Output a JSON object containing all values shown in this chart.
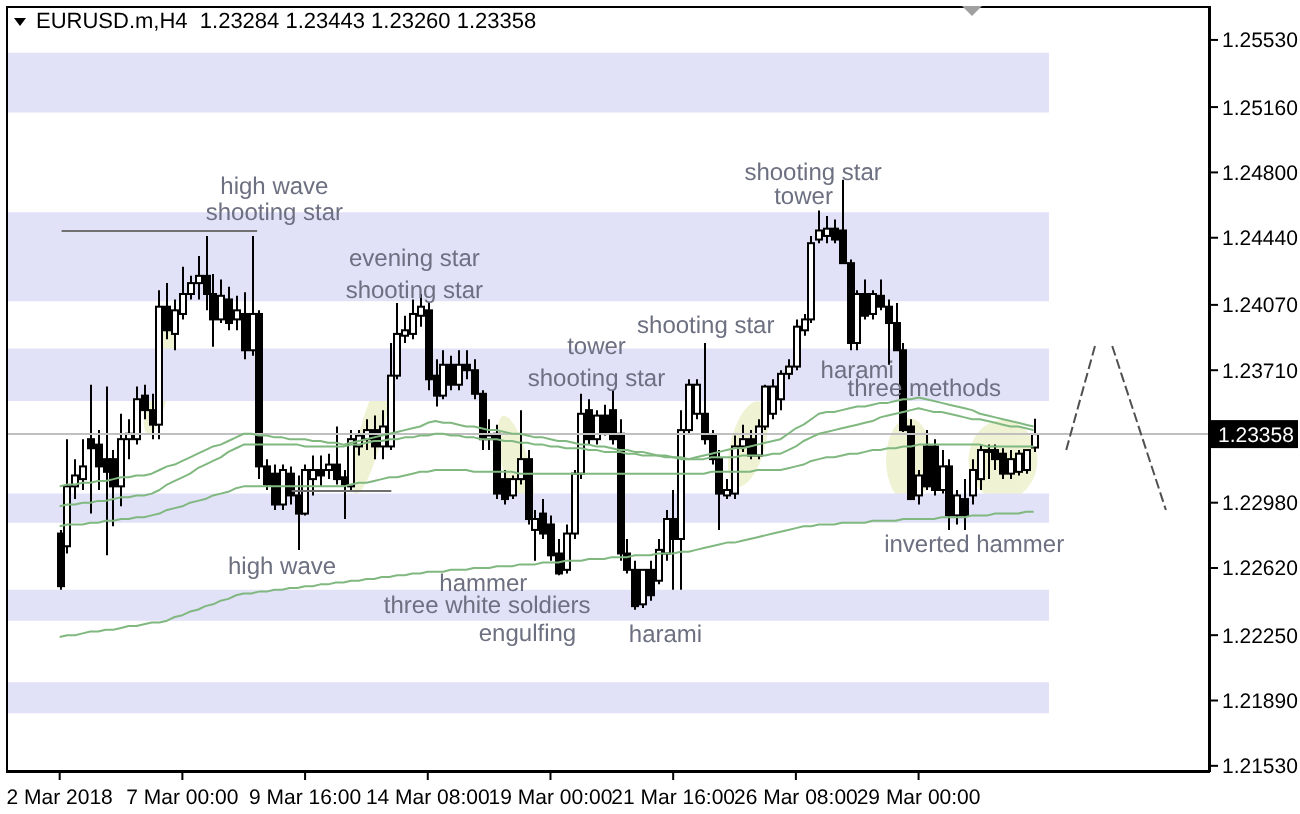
{
  "chart_data": {
    "type": "candlestick",
    "title": "EURUSD.m,H4  1.23284 1.23443 1.23260 1.23358",
    "categories": [
      "2 Mar 2018",
      null,
      null,
      null,
      null,
      null,
      null,
      null,
      null,
      null,
      null,
      null,
      null,
      null,
      null,
      null,
      "7 Mar 00:00",
      null,
      null,
      null,
      null,
      null,
      null,
      null,
      null,
      null,
      null,
      null,
      null,
      null,
      null,
      null,
      "9 Mar 16:00",
      null,
      null,
      null,
      null,
      null,
      null,
      null,
      null,
      null,
      null,
      null,
      null,
      null,
      null,
      null,
      "14 Mar 08:00",
      null,
      null,
      null,
      null,
      null,
      null,
      null,
      null,
      null,
      null,
      null,
      null,
      null,
      null,
      null,
      "19 Mar 00:00",
      null,
      null,
      null,
      null,
      null,
      null,
      null,
      null,
      null,
      null,
      null,
      null,
      null,
      null,
      null,
      "21 Mar 16:00",
      null,
      null,
      null,
      null,
      null,
      null,
      null,
      null,
      null,
      null,
      null,
      null,
      null,
      null,
      null,
      "26 Mar 08:00",
      null,
      null,
      null,
      null,
      null,
      null,
      null,
      null,
      null,
      null,
      null,
      null,
      null,
      null,
      null,
      "29 Mar 00:00",
      null,
      null,
      null,
      null,
      null,
      null,
      null,
      null,
      null,
      null,
      null,
      null,
      null,
      null,
      null
    ],
    "series": [
      {
        "type": "line",
        "color": "#80b880",
        "values": [
          1.2307,
          1.2308,
          1.2308,
          1.2309,
          1.2309,
          1.231,
          1.231,
          1.2311,
          1.2312,
          1.2312,
          1.2313,
          1.2313,
          1.2314,
          1.2316,
          1.2318,
          1.2319,
          1.2321,
          1.2323,
          1.2325,
          1.2327,
          1.2329,
          1.233,
          1.2332,
          1.2334,
          1.2336,
          1.2336,
          1.2335,
          1.2335,
          1.2334,
          1.2334,
          1.2333,
          1.2333,
          1.2333,
          1.2332,
          1.2332,
          1.2331,
          1.2331,
          1.233,
          1.2331,
          1.2332,
          1.2333,
          1.2334,
          1.2335,
          1.2336,
          1.2337,
          1.2338,
          1.2339,
          1.234,
          1.2342,
          1.2343,
          1.2342,
          1.2342,
          1.2341,
          1.234,
          1.234,
          1.2339,
          1.2338,
          1.2338,
          1.2337,
          1.2336,
          1.2336,
          1.2335,
          1.2334,
          1.2334,
          1.2333,
          1.2332,
          1.2332,
          1.2331,
          1.233,
          1.233,
          1.2329,
          1.2329,
          1.2328,
          1.2327,
          1.2327,
          1.2326,
          1.2326,
          1.2325,
          1.2324,
          1.2324,
          1.2323,
          1.2323,
          1.2322,
          1.2323,
          1.2324,
          1.2325,
          1.2326,
          1.2327,
          1.2328,
          1.2328,
          1.2329,
          1.233,
          1.2331,
          1.2332,
          1.2333,
          1.2336,
          1.2339,
          1.2341,
          1.2344,
          1.2347,
          1.2348,
          1.2348,
          1.2349,
          1.235,
          1.2351,
          1.2351,
          1.2352,
          1.2353,
          1.2353,
          1.2354,
          1.2355,
          1.2355,
          1.2356,
          1.2355,
          1.2354,
          1.2353,
          1.2352,
          1.2351,
          1.235,
          1.2349,
          1.2347,
          1.2346,
          1.2345,
          1.2344,
          1.2343,
          1.2342,
          1.2341,
          1.234
        ]
      },
      {
        "type": "line",
        "color": "#80b880",
        "values": [
          1.2296,
          1.2297,
          1.2297,
          1.2298,
          1.2298,
          1.2299,
          1.2299,
          1.23,
          1.2301,
          1.2301,
          1.2302,
          1.2302,
          1.2303,
          1.2305,
          1.2308,
          1.231,
          1.2312,
          1.2314,
          1.2317,
          1.2319,
          1.2321,
          1.2323,
          1.2326,
          1.2328,
          1.233,
          1.233,
          1.233,
          1.233,
          1.233,
          1.233,
          1.233,
          1.233,
          1.2329,
          1.2329,
          1.2329,
          1.2329,
          1.2329,
          1.2329,
          1.233,
          1.233,
          1.2331,
          1.2332,
          1.2332,
          1.2333,
          1.2333,
          1.2334,
          1.2334,
          1.2335,
          1.2335,
          1.2336,
          1.2336,
          1.2335,
          1.2335,
          1.2334,
          1.2334,
          1.2333,
          1.2333,
          1.2333,
          1.2332,
          1.2332,
          1.2331,
          1.2331,
          1.233,
          1.233,
          1.2329,
          1.2329,
          1.2328,
          1.2328,
          1.2328,
          1.2327,
          1.2327,
          1.2326,
          1.2326,
          1.2326,
          1.2325,
          1.2325,
          1.2324,
          1.2324,
          1.2324,
          1.2323,
          1.2323,
          1.2322,
          1.2322,
          1.2322,
          1.2322,
          1.2323,
          1.2323,
          1.2323,
          1.2323,
          1.2324,
          1.2324,
          1.2324,
          1.2324,
          1.2325,
          1.2325,
          1.2327,
          1.2329,
          1.2332,
          1.2334,
          1.2336,
          1.2337,
          1.2338,
          1.2339,
          1.234,
          1.2341,
          1.2342,
          1.2343,
          1.2345,
          1.2346,
          1.2347,
          1.2348,
          1.2349,
          1.235,
          1.2349,
          1.2348,
          1.2348,
          1.2347,
          1.2346,
          1.2345,
          1.2344,
          1.2344,
          1.2343,
          1.2342,
          1.2341,
          1.234,
          1.234,
          1.2339,
          1.2338
        ]
      },
      {
        "type": "line",
        "color": "#80b880",
        "values": [
          1.2285,
          1.2286,
          1.2286,
          1.2286,
          1.2287,
          1.2287,
          1.2288,
          1.2288,
          1.2289,
          1.2289,
          1.229,
          1.229,
          1.2291,
          1.2292,
          1.2294,
          1.2295,
          1.2296,
          1.2298,
          1.2299,
          1.23,
          1.2302,
          1.2303,
          1.2304,
          1.2306,
          1.2307,
          1.2307,
          1.2307,
          1.2307,
          1.2307,
          1.2307,
          1.2307,
          1.2307,
          1.2307,
          1.2307,
          1.2307,
          1.2307,
          1.2307,
          1.2307,
          1.2308,
          1.2309,
          1.2309,
          1.231,
          1.2311,
          1.2312,
          1.2312,
          1.2313,
          1.2314,
          1.2315,
          1.2315,
          1.2316,
          1.2316,
          1.2316,
          1.2316,
          1.2316,
          1.2315,
          1.2315,
          1.2315,
          1.2315,
          1.2315,
          1.2315,
          1.2314,
          1.2314,
          1.2314,
          1.2314,
          1.2314,
          1.2314,
          1.2314,
          1.2314,
          1.2314,
          1.2314,
          1.2314,
          1.2314,
          1.2314,
          1.2314,
          1.2314,
          1.2314,
          1.2314,
          1.2314,
          1.2314,
          1.2314,
          1.2314,
          1.2314,
          1.2314,
          1.2314,
          1.2314,
          1.2315,
          1.2315,
          1.2315,
          1.2315,
          1.2315,
          1.2315,
          1.2316,
          1.2316,
          1.2316,
          1.2316,
          1.2317,
          1.2318,
          1.2319,
          1.2321,
          1.2322,
          1.2323,
          1.2323,
          1.2324,
          1.2325,
          1.2325,
          1.2326,
          1.2327,
          1.2327,
          1.2328,
          1.2328,
          1.2329,
          1.2329,
          1.233,
          1.233,
          1.233,
          1.233,
          1.233,
          1.233,
          1.233,
          1.233,
          1.233,
          1.2329,
          1.2329,
          1.2329,
          1.2329,
          1.2329,
          1.2329,
          1.2329
        ]
      },
      {
        "type": "line",
        "color": "#80b880",
        "values": [
          1.2224,
          1.2225,
          1.2225,
          1.2226,
          1.2227,
          1.2227,
          1.2228,
          1.2228,
          1.2229,
          1.223,
          1.223,
          1.2231,
          1.2232,
          1.2232,
          1.2233,
          1.2235,
          1.2236,
          1.2238,
          1.2239,
          1.2241,
          1.2242,
          1.2244,
          1.2245,
          1.2247,
          1.2248,
          1.2248,
          1.2249,
          1.2249,
          1.225,
          1.225,
          1.2251,
          1.2251,
          1.2252,
          1.2252,
          1.2253,
          1.2253,
          1.2254,
          1.2254,
          1.2255,
          1.2255,
          1.2256,
          1.2256,
          1.2257,
          1.2257,
          1.2258,
          1.2258,
          1.2259,
          1.2259,
          1.226,
          1.226,
          1.226,
          1.2261,
          1.2261,
          1.2261,
          1.2262,
          1.2262,
          1.2262,
          1.2263,
          1.2263,
          1.2263,
          1.2264,
          1.2264,
          1.2264,
          1.2265,
          1.2265,
          1.2265,
          1.2266,
          1.2266,
          1.2266,
          1.2267,
          1.2267,
          1.2267,
          1.2268,
          1.2268,
          1.2268,
          1.2269,
          1.2269,
          1.2269,
          1.227,
          1.227,
          1.227,
          1.2271,
          1.2271,
          1.2272,
          1.2273,
          1.2274,
          1.2275,
          1.2276,
          1.2276,
          1.2277,
          1.2278,
          1.2279,
          1.228,
          1.2281,
          1.2282,
          1.2283,
          1.2284,
          1.2285,
          1.2285,
          1.2286,
          1.2286,
          1.2286,
          1.2287,
          1.2287,
          1.2287,
          1.2287,
          1.2288,
          1.2288,
          1.2288,
          1.2288,
          1.2289,
          1.2289,
          1.2289,
          1.2289,
          1.2289,
          1.229,
          1.229,
          1.229,
          1.229,
          1.2291,
          1.2291,
          1.2291,
          1.2292,
          1.2292,
          1.2292,
          1.2292,
          1.2293,
          1.2293
        ]
      },
      {
        "type": "candlestick",
        "color": "#000000",
        "ohlc": [
          [
            1.2281,
            1.2283,
            1.225,
            1.2252
          ],
          [
            1.2274,
            1.2333,
            1.227,
            1.2307
          ],
          [
            1.2307,
            1.2322,
            1.23,
            1.2313
          ],
          [
            1.2311,
            1.2333,
            1.2305,
            1.2318
          ],
          [
            1.2333,
            1.2363,
            1.2292,
            1.2328
          ],
          [
            1.233,
            1.2338,
            1.2305,
            1.2318
          ],
          [
            1.2322,
            1.2362,
            1.2269,
            1.2315
          ],
          [
            1.2322,
            1.2327,
            1.2285,
            1.2307
          ],
          [
            1.2307,
            1.2347,
            1.2296,
            1.2333
          ],
          [
            1.2333,
            1.2344,
            1.2322,
            1.2336
          ],
          [
            1.2333,
            1.2362,
            1.233,
            1.2355
          ],
          [
            1.2357,
            1.2363,
            1.2344,
            1.2349
          ],
          [
            1.2349,
            1.2358,
            1.2333,
            1.2341
          ],
          [
            1.2341,
            1.2415,
            1.2333,
            1.2406
          ],
          [
            1.2406,
            1.2419,
            1.2388,
            1.2393
          ],
          [
            1.2391,
            1.241,
            1.2382,
            1.2404
          ],
          [
            1.2402,
            1.2428,
            1.2399,
            1.2413
          ],
          [
            1.2413,
            1.2423,
            1.241,
            1.2419
          ],
          [
            1.2419,
            1.2434,
            1.241,
            1.2423
          ],
          [
            1.2423,
            1.2445,
            1.2404,
            1.2413
          ],
          [
            1.2413,
            1.2424,
            1.2384,
            1.2399
          ],
          [
            1.2399,
            1.2421,
            1.2397,
            1.2412
          ],
          [
            1.241,
            1.2417,
            1.2393,
            1.2397
          ],
          [
            1.2399,
            1.2412,
            1.2393,
            1.2404
          ],
          [
            1.2402,
            1.2414,
            1.2377,
            1.2382
          ],
          [
            1.2382,
            1.2445,
            1.2379,
            1.2402
          ],
          [
            1.2402,
            1.2404,
            1.2311,
            1.2318
          ],
          [
            1.2318,
            1.2322,
            1.2305,
            1.2308
          ],
          [
            1.2314,
            1.2319,
            1.2294,
            1.2297
          ],
          [
            1.2297,
            1.2319,
            1.2294,
            1.2316
          ],
          [
            1.2314,
            1.2318,
            1.2297,
            1.2302
          ],
          [
            1.2302,
            1.2313,
            1.2272,
            1.2292
          ],
          [
            1.2292,
            1.2319,
            1.2291,
            1.2316
          ],
          [
            1.2311,
            1.2324,
            1.2302,
            1.2316
          ],
          [
            1.2316,
            1.2324,
            1.2307,
            1.2313
          ],
          [
            1.2316,
            1.2325,
            1.2311,
            1.2319
          ],
          [
            1.2319,
            1.234,
            1.2308,
            1.2311
          ],
          [
            1.2312,
            1.2316,
            1.2289,
            1.2308
          ],
          [
            1.2307,
            1.2338,
            1.2305,
            1.2333
          ],
          [
            1.2329,
            1.2338,
            1.2324,
            1.2335
          ],
          [
            1.2333,
            1.2344,
            1.2327,
            1.2338
          ],
          [
            1.2338,
            1.2346,
            1.2322,
            1.2329
          ],
          [
            1.2329,
            1.2349,
            1.2322,
            1.234
          ],
          [
            1.2329,
            1.2386,
            1.2327,
            1.2368
          ],
          [
            1.2368,
            1.2408,
            1.2366,
            1.2391
          ],
          [
            1.239,
            1.2401,
            1.2386,
            1.2393
          ],
          [
            1.2391,
            1.241,
            1.2388,
            1.2402
          ],
          [
            1.2401,
            1.2413,
            1.2395,
            1.2406
          ],
          [
            1.2404,
            1.2408,
            1.236,
            1.2366
          ],
          [
            1.2368,
            1.2377,
            1.2351,
            1.2357
          ],
          [
            1.2357,
            1.2382,
            1.2355,
            1.2374
          ],
          [
            1.2374,
            1.2379,
            1.236,
            1.2363
          ],
          [
            1.2363,
            1.2382,
            1.236,
            1.2374
          ],
          [
            1.2374,
            1.2382,
            1.2366,
            1.2371
          ],
          [
            1.2371,
            1.2377,
            1.2355,
            1.2358
          ],
          [
            1.2358,
            1.236,
            1.2327,
            1.2333
          ],
          [
            1.2333,
            1.2344,
            1.2327,
            1.2335
          ],
          [
            1.2336,
            1.2341,
            1.23,
            1.2303
          ],
          [
            1.2311,
            1.2316,
            1.2297,
            1.23
          ],
          [
            1.2302,
            1.2313,
            1.23,
            1.2311
          ],
          [
            1.2311,
            1.2349,
            1.2308,
            1.2322
          ],
          [
            1.2322,
            1.2327,
            1.2286,
            1.2289
          ],
          [
            1.2283,
            1.2294,
            1.2266,
            1.2289
          ],
          [
            1.2292,
            1.23,
            1.2278,
            1.2281
          ],
          [
            1.2286,
            1.2291,
            1.2266,
            1.2269
          ],
          [
            1.227,
            1.2278,
            1.2258,
            1.2259
          ],
          [
            1.2261,
            1.2286,
            1.2259,
            1.2281
          ],
          [
            1.2281,
            1.2316,
            1.2278,
            1.2314
          ],
          [
            1.2314,
            1.2358,
            1.2311,
            1.2347
          ],
          [
            1.2349,
            1.2355,
            1.233,
            1.2333
          ],
          [
            1.2333,
            1.2349,
            1.233,
            1.2346
          ],
          [
            1.2346,
            1.2352,
            1.2335,
            1.2336
          ],
          [
            1.2349,
            1.236,
            1.233,
            1.2333
          ],
          [
            1.2336,
            1.2344,
            1.2266,
            1.227
          ],
          [
            1.227,
            1.2278,
            1.2259,
            1.2261
          ],
          [
            1.2261,
            1.2266,
            1.2239,
            1.2241
          ],
          [
            1.2242,
            1.2261,
            1.224,
            1.2261
          ],
          [
            1.2261,
            1.2266,
            1.2244,
            1.2247
          ],
          [
            1.2255,
            1.2278,
            1.2253,
            1.2272
          ],
          [
            1.227,
            1.2294,
            1.2266,
            1.2289
          ],
          [
            1.2289,
            1.2305,
            1.225,
            1.2278
          ],
          [
            1.2278,
            1.2349,
            1.225,
            1.2338
          ],
          [
            1.2338,
            1.2366,
            1.2336,
            1.2363
          ],
          [
            1.2347,
            1.2366,
            1.2344,
            1.2363
          ],
          [
            1.2347,
            1.2386,
            1.233,
            1.2333
          ],
          [
            1.2335,
            1.2338,
            1.2319,
            1.2322
          ],
          [
            1.2322,
            1.2327,
            1.2283,
            1.2303
          ],
          [
            1.2302,
            1.2311,
            1.23,
            1.2305
          ],
          [
            1.2303,
            1.2335,
            1.23,
            1.2329
          ],
          [
            1.2329,
            1.2341,
            1.2326,
            1.2333
          ],
          [
            1.2333,
            1.2338,
            1.2322,
            1.2324
          ],
          [
            1.2324,
            1.2344,
            1.2322,
            1.234
          ],
          [
            1.234,
            1.2363,
            1.2338,
            1.2362
          ],
          [
            1.2347,
            1.2366,
            1.2344,
            1.2362
          ],
          [
            1.2355,
            1.2371,
            1.2349,
            1.2369
          ],
          [
            1.2369,
            1.2377,
            1.2366,
            1.2373
          ],
          [
            1.2373,
            1.2399,
            1.2371,
            1.2395
          ],
          [
            1.2393,
            1.2402,
            1.239,
            1.2399
          ],
          [
            1.2399,
            1.2445,
            1.2397,
            1.2441
          ],
          [
            1.2443,
            1.2459,
            1.2441,
            1.2448
          ],
          [
            1.2445,
            1.2456,
            1.2441,
            1.2449
          ],
          [
            1.2449,
            1.2454,
            1.2441,
            1.2443
          ],
          [
            1.2448,
            1.2476,
            1.243,
            1.243
          ],
          [
            1.243,
            1.2432,
            1.2382,
            1.2386
          ],
          [
            1.2386,
            1.2415,
            1.2382,
            1.2413
          ],
          [
            1.2413,
            1.2421,
            1.2399,
            1.2401
          ],
          [
            1.2402,
            1.2415,
            1.2399,
            1.2413
          ],
          [
            1.2412,
            1.2421,
            1.2404,
            1.2406
          ],
          [
            1.2406,
            1.241,
            1.2374,
            1.2397
          ],
          [
            1.2397,
            1.2408,
            1.2382,
            1.2382
          ],
          [
            1.2382,
            1.2386,
            1.2337,
            1.2338
          ],
          [
            1.234,
            1.2344,
            1.23,
            1.23
          ],
          [
            1.2302,
            1.2316,
            1.2297,
            1.2313
          ],
          [
            1.2329,
            1.2338,
            1.2305,
            1.2307
          ],
          [
            1.2329,
            1.2333,
            1.2302,
            1.2305
          ],
          [
            1.2305,
            1.2327,
            1.2303,
            1.2318
          ],
          [
            1.2318,
            1.2322,
            1.2283,
            1.2291
          ],
          [
            1.2291,
            1.2305,
            1.2286,
            1.2302
          ],
          [
            1.23,
            1.2311,
            1.2283,
            1.2291
          ],
          [
            1.2302,
            1.2322,
            1.2297,
            1.2316
          ],
          [
            1.2311,
            1.233,
            1.2305,
            1.2327
          ],
          [
            1.2326,
            1.233,
            1.2311,
            1.2327
          ],
          [
            1.2327,
            1.233,
            1.2316,
            1.2322
          ],
          [
            1.2325,
            1.2328,
            1.2311,
            1.2314
          ],
          [
            1.2314,
            1.2327,
            1.2311,
            1.2322
          ],
          [
            1.2315,
            1.2327,
            1.2313,
            1.2325
          ],
          [
            1.2316,
            1.2327,
            1.2314,
            1.2327
          ],
          [
            1.23284,
            1.23443,
            1.2326,
            1.23358
          ]
        ]
      }
    ],
    "ylim": [
      1.21496,
      1.25717
    ],
    "yticks": [
      {
        "value": 1.2553,
        "label": "1.25530"
      },
      {
        "value": 1.2516,
        "label": "1.25160"
      },
      {
        "value": 1.248,
        "label": "1.24800"
      },
      {
        "value": 1.2444,
        "label": "1.24440"
      },
      {
        "value": 1.2407,
        "label": "1.24070"
      },
      {
        "value": 1.2371,
        "label": "1.23710"
      },
      {
        "value": 1.2298,
        "label": "1.22980"
      },
      {
        "value": 1.2262,
        "label": "1.22620"
      },
      {
        "value": 1.2225,
        "label": "1.22250"
      },
      {
        "value": 1.2189,
        "label": "1.21890"
      },
      {
        "value": 1.2153,
        "label": "1.21530"
      }
    ],
    "ref_lines": [
      {
        "axis": "y",
        "value": 1.23358,
        "label": "1.23358",
        "color": "#c0c0c0"
      }
    ],
    "bands": [
      {
        "axis": "y",
        "from": 1.2513,
        "to": 1.2546,
        "color": "#e1e1f7"
      },
      {
        "axis": "y",
        "from": 1.2409,
        "to": 1.2458,
        "color": "#e1e1f7"
      },
      {
        "axis": "y",
        "from": 1.2354,
        "to": 1.2383,
        "color": "#e1e1f7"
      },
      {
        "axis": "y",
        "from": 1.2287,
        "to": 1.2303,
        "color": "#e1e1f7"
      },
      {
        "axis": "y",
        "from": 1.2233,
        "to": 1.225,
        "color": "#e1e1f7"
      },
      {
        "axis": "y",
        "from": 1.2182,
        "to": 1.2199,
        "color": "#e1e1f7"
      }
    ],
    "annotations": [
      "high wave",
      "shooting star",
      {
        "text": "evening star",
        "y": 1.2413
      },
      {
        "text": "shooting star",
        "y": 1.2413
      },
      "high wave",
      "tower",
      "shooting star",
      {
        "text": "hammer",
        "y": 1.2258
      },
      {
        "text": "three white soldiers",
        "y": 1.2258
      },
      {
        "text": "engulfing",
        "y": 1.2258
      },
      {
        "text": "shooting star",
        "y": 1.2386
      },
      "harami",
      "shooting star",
      "tower",
      {
        "text": "harami",
        "y": 1.2382
      },
      {
        "text": "three methods",
        "y": 1.2338
      },
      {
        "text": "inverted hammer",
        "y": 1.2283
      }
    ]
  }
}
